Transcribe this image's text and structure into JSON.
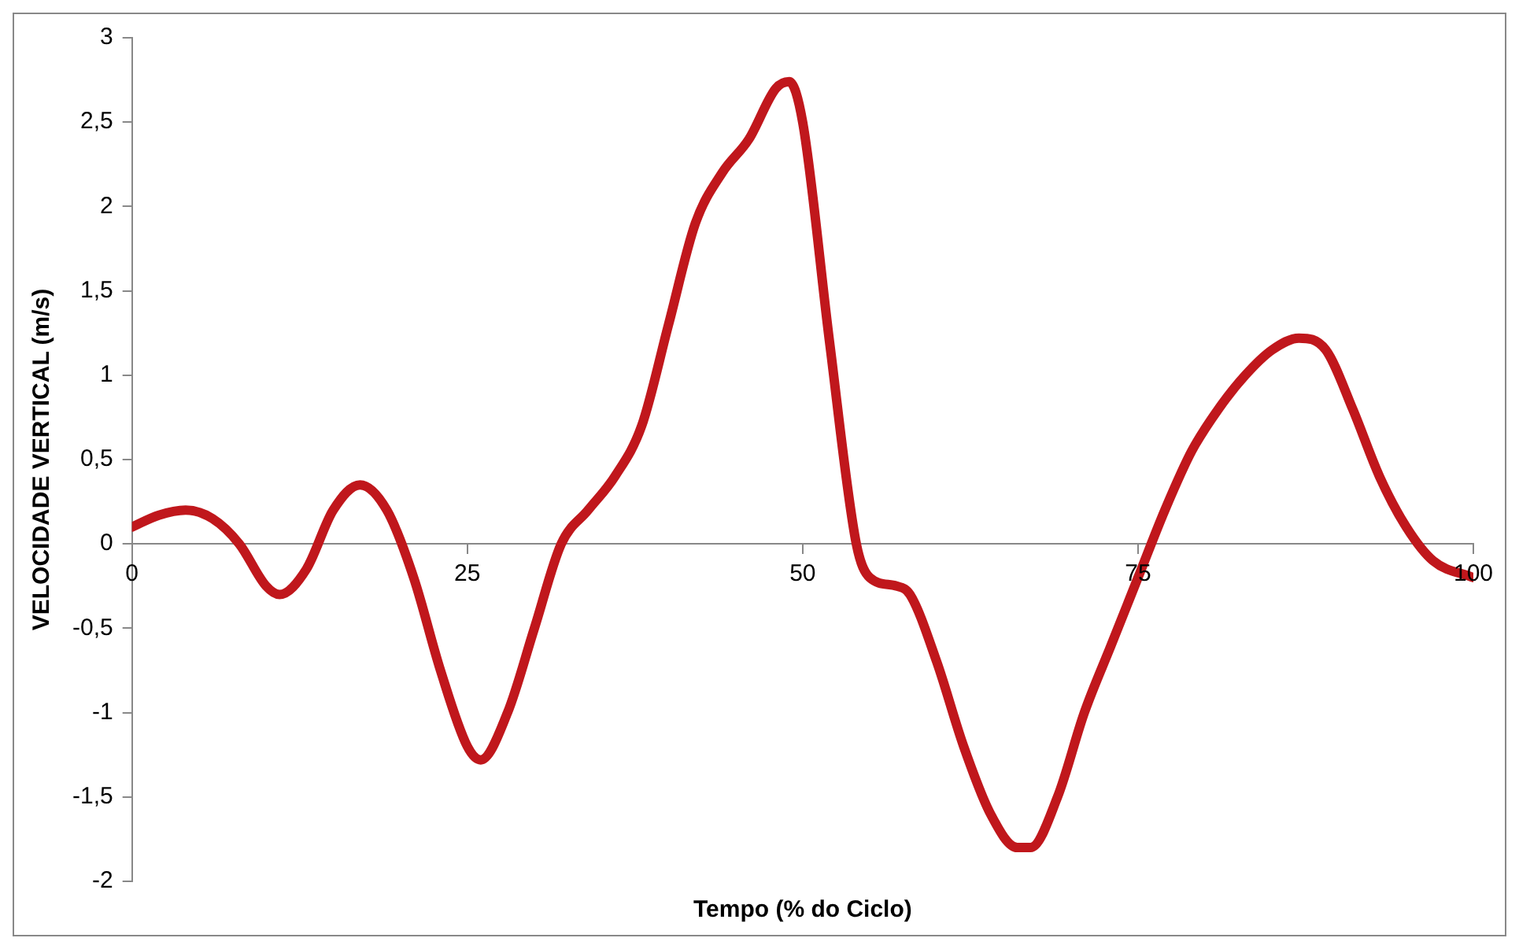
{
  "chart_data": {
    "type": "line",
    "xlabel": "Tempo (% do Ciclo)",
    "ylabel": "VELOCIDADE VERTICAL (m/s)",
    "xlim": [
      0,
      100
    ],
    "xticks": [
      0,
      25,
      50,
      75,
      100
    ],
    "ylim": [
      -2,
      3
    ],
    "yticks": [
      {
        "value": -2,
        "label": "-2"
      },
      {
        "value": -1.5,
        "label": "-1,5"
      },
      {
        "value": -1,
        "label": "-1"
      },
      {
        "value": -0.5,
        "label": "-0,5"
      },
      {
        "value": 0,
        "label": "0"
      },
      {
        "value": 0.5,
        "label": "0,5"
      },
      {
        "value": 1,
        "label": "1"
      },
      {
        "value": 1.5,
        "label": "1,5"
      },
      {
        "value": 2,
        "label": "2"
      },
      {
        "value": 2.5,
        "label": "2,5"
      },
      {
        "value": 3,
        "label": "3"
      }
    ],
    "grid": false,
    "legend": false,
    "marker": "none",
    "line_style": "solid",
    "series": [
      {
        "color": "#c0171c",
        "x": [
          0,
          2,
          4,
          6,
          8,
          10,
          11,
          13,
          15,
          17,
          19,
          21,
          23,
          25,
          26,
          28,
          30,
          32,
          34,
          36,
          38,
          40,
          42,
          44,
          46,
          48,
          49,
          50,
          52,
          54,
          55,
          57,
          58,
          60,
          62,
          64,
          66,
          67,
          69,
          71,
          73,
          75,
          77,
          79,
          81,
          83,
          85,
          87,
          89,
          91,
          93,
          95,
          97,
          100
        ],
        "values": [
          0.1,
          0.17,
          0.2,
          0.15,
          0,
          -0.25,
          -0.3,
          -0.15,
          0.2,
          0.35,
          0.2,
          -0.2,
          -0.75,
          -1.2,
          -1.28,
          -1,
          -0.5,
          0,
          0.2,
          0.4,
          0.7,
          1.3,
          1.9,
          2.2,
          2.4,
          2.7,
          2.74,
          2.5,
          1.2,
          0,
          -0.2,
          -0.25,
          -0.3,
          -0.7,
          -1.2,
          -1.6,
          -1.8,
          -1.8,
          -1.5,
          -1,
          -0.6,
          -0.2,
          0.2,
          0.55,
          0.8,
          1,
          1.15,
          1.22,
          1.15,
          0.8,
          0.4,
          0.1,
          -0.1,
          -0.2
        ]
      }
    ]
  }
}
